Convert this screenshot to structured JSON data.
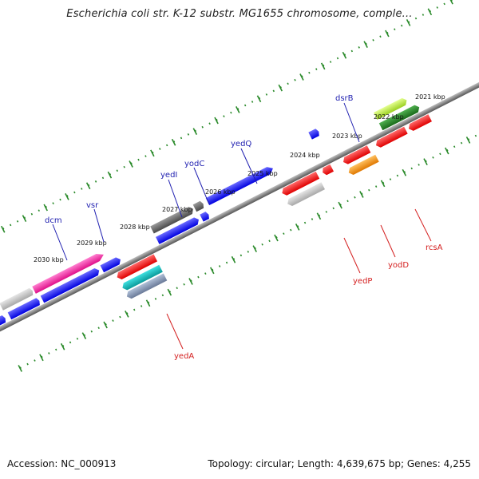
{
  "title": "Escherichia coli str. K-12 substr. MG1655 chromosome, comple...",
  "footer": {
    "accession": "Accession: NC_000913",
    "summary": "Topology: circular; Length: 4,639,675 bp; Genes: 4,255"
  },
  "colors": {
    "axis": "#777777",
    "tick": "#2a8a2a",
    "forward_label": "#1f1fb0",
    "reverse_label": "#d42020"
  },
  "kbp_ticks": [
    "2030 kbp",
    "2029 kbp",
    "2028 kbp",
    "2027 kbp",
    "2026 kbp",
    "2025 kbp",
    "2024 kbp",
    "2023 kbp",
    "2022 kbp",
    "2021 kbp"
  ],
  "forward_genes": [
    {
      "label": "dcm",
      "color": "#ff1a9c"
    },
    {
      "label": "vsr",
      "color": "#1010ff"
    },
    {
      "label": "yedI",
      "color": "#1010ff"
    },
    {
      "label": "yodC",
      "color": "#555555"
    },
    {
      "label": "yedQ",
      "color": "#1010ff"
    },
    {
      "label": "dsrB",
      "color": "#1010ff"
    }
  ],
  "reverse_genes": [
    {
      "label": "yedA",
      "color": "#ff0000"
    },
    {
      "label": "yedP",
      "color": "#ff0000"
    },
    {
      "label": "yodD",
      "color": "#ff0000"
    },
    {
      "label": "rcsA",
      "color": "#ff8c00"
    }
  ]
}
